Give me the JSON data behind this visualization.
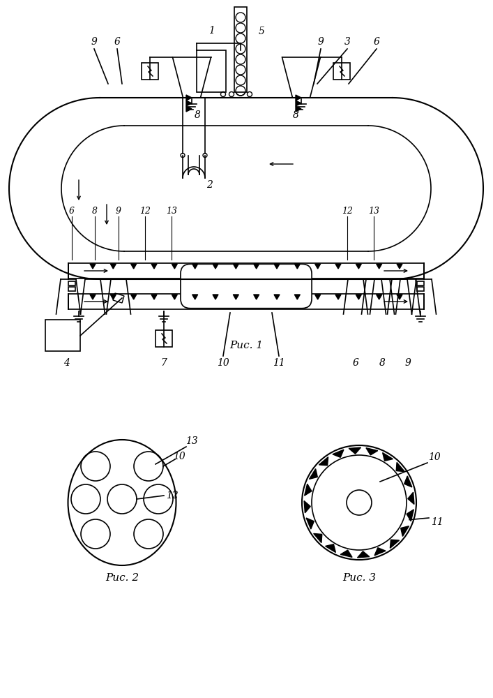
{
  "bg_color": "#ffffff",
  "line_color": "#000000",
  "fig1_caption": "Рис. 1",
  "fig2_caption": "Рис. 2",
  "fig3_caption": "Рис. 3"
}
